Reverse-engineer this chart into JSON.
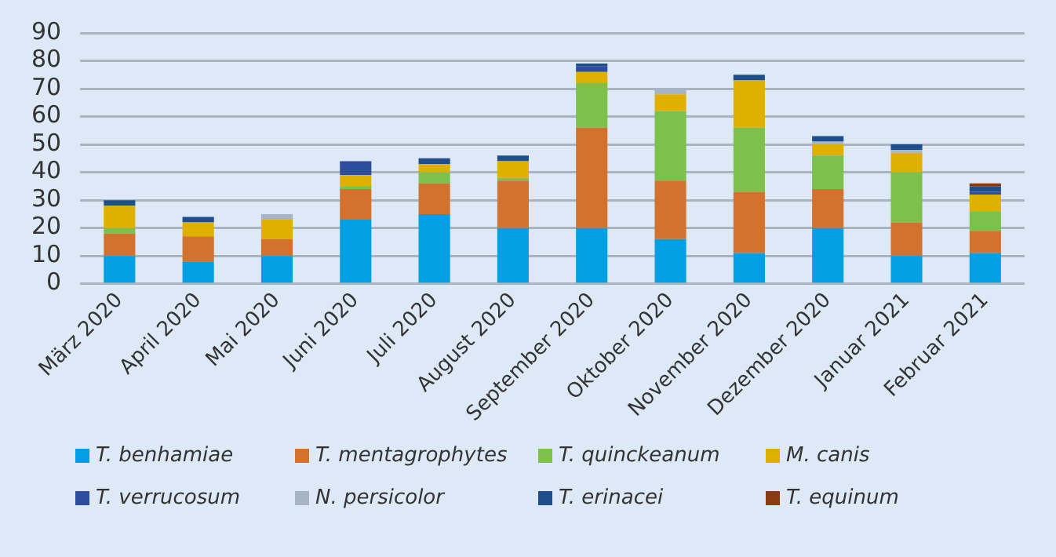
{
  "chart_data": {
    "type": "bar",
    "stacked": true,
    "legend": "bottom",
    "grid": "y",
    "categories": [
      "März 2020",
      "April 2020",
      "Mai 2020",
      "Juni 2020",
      "Juli 2020",
      "August 2020",
      "September 2020",
      "Oktober 2020",
      "November 2020",
      "Dezember 2020",
      "Januar 2021",
      "Februar 2021"
    ],
    "ylim": [
      0,
      90
    ],
    "yticks": [
      0,
      10,
      20,
      30,
      40,
      50,
      60,
      70,
      80,
      90
    ],
    "series": [
      {
        "name": "T. benhamiae",
        "color": "#00a0e3",
        "values": [
          10,
          8,
          10,
          23,
          25,
          20,
          20,
          16,
          11,
          20,
          10,
          11
        ]
      },
      {
        "name": "T. mentagrophytes",
        "color": "#d2722e",
        "values": [
          8,
          9,
          6,
          11,
          11,
          17,
          36,
          21,
          22,
          14,
          12,
          8
        ]
      },
      {
        "name": "T. quinckeanum",
        "color": "#7dc04b",
        "values": [
          2,
          0,
          0,
          1,
          4,
          1,
          16,
          25,
          23,
          12,
          18,
          7
        ]
      },
      {
        "name": "M. canis",
        "color": "#e0b000",
        "values": [
          8,
          5,
          7,
          4,
          3,
          6,
          4,
          6,
          17,
          4,
          7,
          6
        ]
      },
      {
        "name": "T. verrucosum",
        "color": "#2e4d9e",
        "values": [
          0,
          0,
          0,
          5,
          0,
          0,
          2,
          0,
          0,
          0,
          0,
          1
        ]
      },
      {
        "name": "N. persicolor",
        "color": "#a6b4c4",
        "values": [
          0,
          0,
          2,
          0,
          0,
          0,
          0,
          2,
          0,
          1,
          1,
          0
        ]
      },
      {
        "name": "T. erinacei",
        "color": "#1f4e8c",
        "values": [
          2,
          2,
          0,
          0,
          2,
          2,
          1,
          0,
          2,
          2,
          2,
          2
        ]
      },
      {
        "name": "T. equinum",
        "color": "#8b3a12",
        "values": [
          0,
          0,
          0,
          0,
          0,
          0,
          0,
          0,
          0,
          0,
          0,
          1
        ]
      }
    ]
  }
}
